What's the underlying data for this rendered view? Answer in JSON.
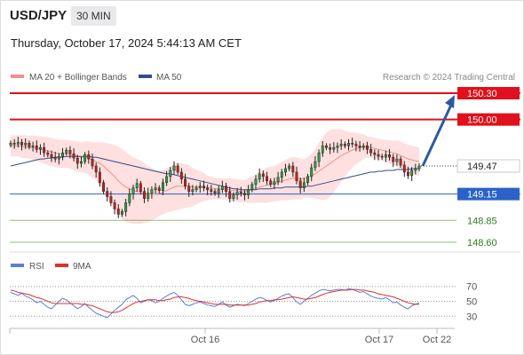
{
  "header": {
    "symbol": "USD/JPY",
    "timeframe": "30 MIN",
    "datetime": "Thursday, October 17, 2024 5:44:13 AM CET"
  },
  "legend": {
    "ma20_label": "MA 20 + Bollinger Bands",
    "ma50_label": "MA 50",
    "ma20_color": "#f0908a",
    "ma50_color": "#2e4f8a",
    "credit": "Research © 2024 Trading Central"
  },
  "rsi_legend": {
    "rsi_label": "RSI",
    "ma_label": "9MA",
    "rsi_color": "#5b7fd6",
    "ma_color": "#e0302a"
  },
  "colors": {
    "resistance": "#e0101c",
    "pivot": "#2a62c9",
    "support": "#5ca83c",
    "arrow": "#2c5aa0",
    "band_fill": "#fde0df"
  },
  "chart_data": [
    {
      "type": "candlestick",
      "title": "USD/JPY",
      "x_tick_labels": [
        "Oct 16",
        "Oct 17",
        "Oct 22"
      ],
      "ylim": [
        148.45,
        150.45
      ],
      "current_price": 149.47,
      "forecast_target": 150.3,
      "levels": [
        {
          "value": 150.3,
          "label": "150.30",
          "kind": "resistance"
        },
        {
          "value": 150.0,
          "label": "150.00",
          "kind": "resistance"
        },
        {
          "value": 149.47,
          "label": "149.47",
          "kind": "current"
        },
        {
          "value": 149.15,
          "label": "149.15",
          "kind": "pivot"
        },
        {
          "value": 148.85,
          "label": "148.85",
          "kind": "support"
        },
        {
          "value": 148.6,
          "label": "148.60",
          "kind": "support"
        }
      ],
      "close": [
        149.73,
        149.72,
        149.74,
        149.71,
        149.73,
        149.69,
        149.7,
        149.66,
        149.68,
        149.62,
        149.6,
        149.57,
        149.55,
        149.58,
        149.62,
        149.65,
        149.61,
        149.56,
        149.5,
        149.52,
        149.6,
        149.55,
        149.47,
        149.4,
        149.28,
        149.18,
        149.12,
        149.05,
        148.98,
        148.92,
        148.95,
        149.05,
        149.15,
        149.22,
        149.27,
        149.18,
        149.1,
        149.16,
        149.2,
        149.22,
        149.19,
        149.28,
        149.35,
        149.42,
        149.47,
        149.4,
        149.32,
        149.24,
        149.18,
        149.2,
        149.22,
        149.24,
        149.22,
        149.2,
        149.18,
        149.16,
        149.2,
        149.24,
        149.18,
        149.1,
        149.14,
        149.17,
        149.16,
        149.14,
        149.2,
        149.26,
        149.32,
        149.38,
        149.35,
        149.3,
        149.26,
        149.29,
        149.34,
        149.4,
        149.44,
        149.47,
        149.4,
        149.3,
        149.22,
        149.28,
        149.35,
        149.45,
        149.52,
        149.62,
        149.7,
        149.68,
        149.66,
        149.68,
        149.7,
        149.72,
        149.7,
        149.73,
        149.72,
        149.7,
        149.68,
        149.7,
        149.66,
        149.62,
        149.6,
        149.58,
        149.57,
        149.6,
        149.57,
        149.52,
        149.55,
        149.48,
        149.4,
        149.36,
        149.42,
        149.44,
        149.47
      ],
      "ma20": [
        149.7,
        149.7,
        149.7,
        149.69,
        149.69,
        149.68,
        149.68,
        149.67,
        149.66,
        149.65,
        149.64,
        149.63,
        149.62,
        149.61,
        149.61,
        149.61,
        149.6,
        149.59,
        149.58,
        149.57,
        149.57,
        149.56,
        149.54,
        149.52,
        149.5,
        149.47,
        149.43,
        149.39,
        149.35,
        149.3,
        149.26,
        149.23,
        149.21,
        149.19,
        149.18,
        149.17,
        149.16,
        149.15,
        149.15,
        149.15,
        149.16,
        149.17,
        149.19,
        149.21,
        149.23,
        149.24,
        149.24,
        149.24,
        149.24,
        149.23,
        149.23,
        149.23,
        149.23,
        149.22,
        149.22,
        149.21,
        149.21,
        149.21,
        149.21,
        149.2,
        149.19,
        149.19,
        149.18,
        149.18,
        149.19,
        149.2,
        149.21,
        149.23,
        149.24,
        149.25,
        149.26,
        149.27,
        149.28,
        149.3,
        149.31,
        149.32,
        149.33,
        149.33,
        149.32,
        149.33,
        149.34,
        149.36,
        149.38,
        149.41,
        149.44,
        149.47,
        149.5,
        149.53,
        149.56,
        149.59,
        149.61,
        149.63,
        149.65,
        149.67,
        149.68,
        149.69,
        149.69,
        149.68,
        149.67,
        149.66,
        149.65,
        149.64,
        149.63,
        149.62,
        149.61,
        149.59,
        149.57,
        149.55,
        149.54,
        149.53,
        149.52
      ],
      "ma50": [
        149.47,
        149.48,
        149.49,
        149.5,
        149.51,
        149.52,
        149.53,
        149.54,
        149.55,
        149.55,
        149.56,
        149.56,
        149.57,
        149.57,
        149.57,
        149.58,
        149.58,
        149.58,
        149.58,
        149.58,
        149.58,
        149.58,
        149.57,
        149.57,
        149.56,
        149.55,
        149.54,
        149.53,
        149.52,
        149.51,
        149.5,
        149.49,
        149.48,
        149.47,
        149.46,
        149.45,
        149.44,
        149.43,
        149.42,
        149.41,
        149.4,
        149.39,
        149.38,
        149.38,
        149.37,
        149.36,
        149.35,
        149.34,
        149.33,
        149.32,
        149.31,
        149.3,
        149.29,
        149.28,
        149.27,
        149.26,
        149.25,
        149.24,
        149.23,
        149.22,
        149.21,
        149.21,
        149.2,
        149.2,
        149.2,
        149.2,
        149.2,
        149.21,
        149.21,
        149.21,
        149.21,
        149.22,
        149.22,
        149.22,
        149.23,
        149.23,
        149.23,
        149.23,
        149.23,
        149.23,
        149.24,
        149.24,
        149.25,
        149.26,
        149.27,
        149.28,
        149.29,
        149.3,
        149.31,
        149.32,
        149.33,
        149.34,
        149.35,
        149.36,
        149.37,
        149.38,
        149.39,
        149.4,
        149.4,
        149.41,
        149.41,
        149.42,
        149.42,
        149.42,
        149.43,
        149.43,
        149.43,
        149.43,
        149.44,
        149.44,
        149.44
      ],
      "band_width": [
        0.12,
        0.12,
        0.12,
        0.13,
        0.13,
        0.13,
        0.14,
        0.14,
        0.15,
        0.15,
        0.16,
        0.16,
        0.16,
        0.16,
        0.16,
        0.16,
        0.16,
        0.17,
        0.17,
        0.17,
        0.18,
        0.19,
        0.2,
        0.22,
        0.24,
        0.27,
        0.3,
        0.33,
        0.36,
        0.39,
        0.4,
        0.4,
        0.39,
        0.38,
        0.37,
        0.36,
        0.34,
        0.32,
        0.3,
        0.28,
        0.26,
        0.25,
        0.25,
        0.26,
        0.27,
        0.27,
        0.26,
        0.25,
        0.24,
        0.22,
        0.2,
        0.18,
        0.16,
        0.14,
        0.13,
        0.12,
        0.12,
        0.12,
        0.12,
        0.13,
        0.13,
        0.13,
        0.13,
        0.13,
        0.14,
        0.15,
        0.16,
        0.18,
        0.19,
        0.2,
        0.2,
        0.2,
        0.21,
        0.22,
        0.23,
        0.24,
        0.24,
        0.24,
        0.23,
        0.22,
        0.23,
        0.25,
        0.28,
        0.32,
        0.36,
        0.38,
        0.38,
        0.36,
        0.33,
        0.3,
        0.26,
        0.23,
        0.2,
        0.18,
        0.16,
        0.14,
        0.12,
        0.12,
        0.12,
        0.12,
        0.12,
        0.13,
        0.13,
        0.14,
        0.15,
        0.16,
        0.16,
        0.16,
        0.16,
        0.16,
        0.16
      ]
    },
    {
      "type": "line",
      "title": "RSI",
      "y_ticks": [
        30,
        50,
        70
      ],
      "ylim": [
        22,
        78
      ],
      "series": [
        {
          "name": "RSI",
          "values": [
            62,
            60,
            58,
            61,
            57,
            55,
            52,
            48,
            50,
            46,
            42,
            40,
            45,
            50,
            54,
            52,
            48,
            44,
            40,
            43,
            47,
            42,
            38,
            34,
            32,
            30,
            28,
            33,
            38,
            42,
            46,
            52,
            55,
            58,
            54,
            48,
            50,
            52,
            51,
            48,
            50,
            54,
            57,
            60,
            62,
            58,
            52,
            46,
            44,
            46,
            48,
            49,
            47,
            45,
            44,
            43,
            46,
            49,
            45,
            42,
            44,
            46,
            45,
            44,
            47,
            50,
            53,
            55,
            54,
            51,
            49,
            51,
            54,
            57,
            59,
            60,
            55,
            49,
            46,
            50,
            54,
            58,
            61,
            64,
            66,
            65,
            64,
            65,
            66,
            66,
            65,
            67,
            66,
            64,
            62,
            63,
            60,
            57,
            55,
            54,
            53,
            55,
            52,
            48,
            49,
            45,
            42,
            40,
            44,
            46,
            48
          ]
        },
        {
          "name": "9MA",
          "values": [
            65,
            64,
            62,
            61,
            60,
            59,
            57,
            55,
            54,
            52,
            50,
            48,
            47,
            47,
            47,
            47,
            47,
            47,
            47,
            46,
            46,
            45,
            44,
            42,
            40,
            38,
            36,
            35,
            35,
            36,
            38,
            41,
            44,
            47,
            49,
            50,
            51,
            52,
            52,
            52,
            51,
            51,
            52,
            53,
            55,
            56,
            56,
            55,
            54,
            52,
            51,
            50,
            49,
            48,
            47,
            46,
            46,
            46,
            46,
            45,
            45,
            45,
            45,
            45,
            45,
            46,
            47,
            49,
            50,
            51,
            51,
            52,
            52,
            53,
            54,
            55,
            56,
            55,
            54,
            53,
            53,
            54,
            55,
            57,
            59,
            61,
            62,
            63,
            64,
            65,
            65,
            65,
            66,
            66,
            65,
            65,
            64,
            63,
            62,
            60,
            59,
            58,
            57,
            56,
            54,
            52,
            50,
            48,
            47,
            46,
            46
          ]
        }
      ]
    }
  ]
}
